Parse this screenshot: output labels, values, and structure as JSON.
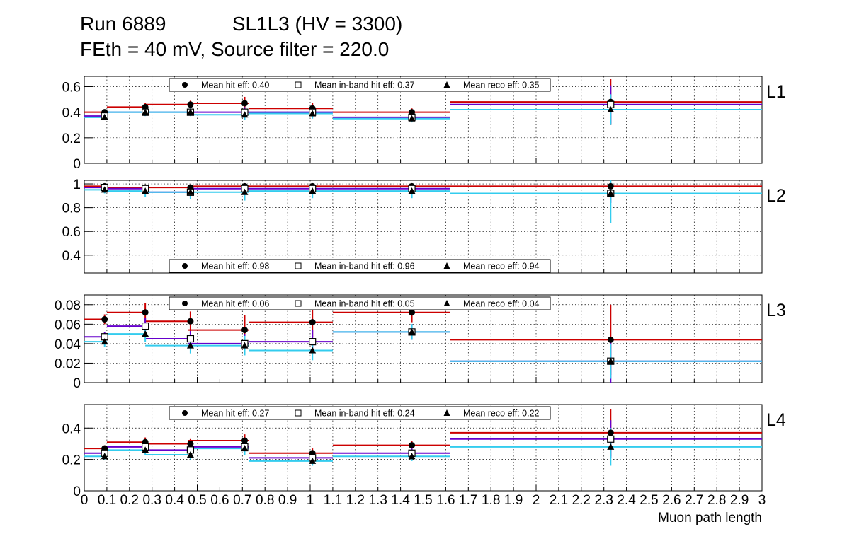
{
  "header": {
    "line1": "Run 6889            SL1L3 (HV = 3300)",
    "line2": "FEth = 40 mV, Source filter = 220.0"
  },
  "colors": {
    "hit": "#cc0000",
    "inband": "#6600cc",
    "reco": "#33ccee",
    "grid": "#000000"
  },
  "chart_data": {
    "type": "scatter",
    "xlabel": "Muon path length",
    "xlim": [
      0,
      3
    ],
    "x_tick_labels": [
      "0",
      "0.1",
      "0.2",
      "0.3",
      "0.4",
      "0.5",
      "0.6",
      "0.7",
      "0.8",
      "0.9",
      "1",
      "1.1",
      "1.2",
      "1.3",
      "1.4",
      "1.5",
      "1.6",
      "1.7",
      "1.8",
      "1.9",
      "2",
      "2.1",
      "2.2",
      "2.3",
      "2.4",
      "2.5",
      "2.6",
      "2.7",
      "2.8",
      "2.9",
      "3"
    ],
    "bins": [
      [
        0,
        0.1
      ],
      [
        0.1,
        0.27
      ],
      [
        0.27,
        0.46
      ],
      [
        0.46,
        0.73
      ],
      [
        0.73,
        1.1
      ],
      [
        1.1,
        1.62
      ],
      [
        1.62,
        3.0
      ]
    ],
    "markers_x": [
      0.09,
      0.27,
      0.47,
      0.71,
      1.01,
      1.45,
      2.33
    ],
    "panels": [
      {
        "label": "L1",
        "ylim": [
          0,
          0.68
        ],
        "yticks": [
          "0",
          "0.2",
          "0.4",
          "0.6"
        ],
        "legend": [
          {
            "symbol": "●",
            "text": "Mean hit  eff: 0.40"
          },
          {
            "symbol": "□",
            "text": "Mean in-band hit eff: 0.37"
          },
          {
            "symbol": "▲",
            "text": "Mean reco eff: 0.35"
          }
        ],
        "series": [
          {
            "name": "Mean hit  eff",
            "values": [
              0.4,
              0.44,
              0.46,
              0.47,
              0.43,
              0.4,
              0.48
            ],
            "errors": [
              0.02,
              0.03,
              0.03,
              0.05,
              0.04,
              0.03,
              0.18
            ]
          },
          {
            "name": "Mean in-band hit eff",
            "values": [
              0.37,
              0.4,
              0.4,
              0.4,
              0.4,
              0.36,
              0.46
            ],
            "errors": [
              0.02,
              0.03,
              0.03,
              0.04,
              0.04,
              0.03,
              0.15
            ]
          },
          {
            "name": "Mean reco eff",
            "values": [
              0.36,
              0.4,
              0.4,
              0.38,
              0.39,
              0.35,
              0.42
            ],
            "errors": [
              0.02,
              0.03,
              0.03,
              0.04,
              0.04,
              0.03,
              0.12
            ]
          }
        ]
      },
      {
        "label": "L2",
        "ylim": [
          0.25,
          1.03
        ],
        "yticks": [
          "0.4",
          "0.6",
          "0.8",
          "1"
        ],
        "legend": [
          {
            "symbol": "●",
            "text": "Mean hit  eff: 0.98"
          },
          {
            "symbol": "□",
            "text": "Mean in-band hit eff: 0.96"
          },
          {
            "symbol": "▲",
            "text": "Mean reco eff: 0.94"
          }
        ],
        "series": [
          {
            "name": "Mean hit  eff",
            "values": [
              0.98,
              0.97,
              0.97,
              0.98,
              0.98,
              0.98,
              0.98
            ],
            "errors": [
              0.01,
              0.01,
              0.02,
              0.02,
              0.02,
              0.02,
              0.03
            ]
          },
          {
            "name": "Mean in-band hit eff",
            "values": [
              0.97,
              0.96,
              0.93,
              0.96,
              0.96,
              0.96,
              0.92
            ],
            "errors": [
              0.02,
              0.03,
              0.04,
              0.04,
              0.04,
              0.04,
              0.08
            ]
          },
          {
            "name": "Mean reco eff",
            "values": [
              0.95,
              0.94,
              0.93,
              0.93,
              0.94,
              0.94,
              0.92
            ],
            "errors": [
              0.03,
              0.05,
              0.06,
              0.07,
              0.06,
              0.06,
              0.25
            ]
          }
        ]
      },
      {
        "label": "L3",
        "ylim": [
          0,
          0.09
        ],
        "yticks": [
          "0",
          "0.02",
          "0.04",
          "0.06",
          "0.08"
        ],
        "legend": [
          {
            "symbol": "●",
            "text": "Mean hit  eff: 0.06"
          },
          {
            "symbol": "□",
            "text": "Mean in-band hit eff: 0.05"
          },
          {
            "symbol": "▲",
            "text": "Mean reco eff: 0.04"
          }
        ],
        "series": [
          {
            "name": "Mean hit  eff",
            "values": [
              0.065,
              0.072,
              0.063,
              0.054,
              0.062,
              0.072,
              0.044
            ],
            "errors": [
              0.005,
              0.01,
              0.01,
              0.015,
              0.015,
              0.01,
              0.036
            ]
          },
          {
            "name": "Mean in-band hit eff",
            "values": [
              0.047,
              0.058,
              0.045,
              0.04,
              0.042,
              0.052,
              0.022
            ],
            "errors": [
              0.005,
              0.008,
              0.008,
              0.01,
              0.012,
              0.008,
              0.022
            ]
          },
          {
            "name": "Mean reco eff",
            "values": [
              0.042,
              0.05,
              0.038,
              0.038,
              0.033,
              0.052,
              0.022
            ],
            "errors": [
              0.005,
              0.008,
              0.008,
              0.01,
              0.01,
              0.008,
              0.018
            ]
          }
        ]
      },
      {
        "label": "L4",
        "ylim": [
          0,
          0.55
        ],
        "yticks": [
          "0",
          "0.2",
          "0.4"
        ],
        "legend": [
          {
            "symbol": "●",
            "text": "Mean hit  eff: 0.27"
          },
          {
            "symbol": "□",
            "text": "Mean in-band hit eff: 0.24"
          },
          {
            "symbol": "▲",
            "text": "Mean reco eff: 0.22"
          }
        ],
        "series": [
          {
            "name": "Mean hit  eff",
            "values": [
              0.27,
              0.31,
              0.3,
              0.32,
              0.24,
              0.29,
              0.37
            ],
            "errors": [
              0.02,
              0.03,
              0.03,
              0.04,
              0.03,
              0.03,
              0.15
            ]
          },
          {
            "name": "Mean in-band hit eff",
            "values": [
              0.24,
              0.28,
              0.26,
              0.28,
              0.21,
              0.24,
              0.33
            ],
            "errors": [
              0.02,
              0.03,
              0.03,
              0.04,
              0.03,
              0.03,
              0.12
            ]
          },
          {
            "name": "Mean reco eff",
            "values": [
              0.22,
              0.26,
              0.23,
              0.27,
              0.19,
              0.22,
              0.28
            ],
            "errors": [
              0.02,
              0.03,
              0.03,
              0.04,
              0.03,
              0.03,
              0.12
            ]
          }
        ]
      }
    ]
  }
}
